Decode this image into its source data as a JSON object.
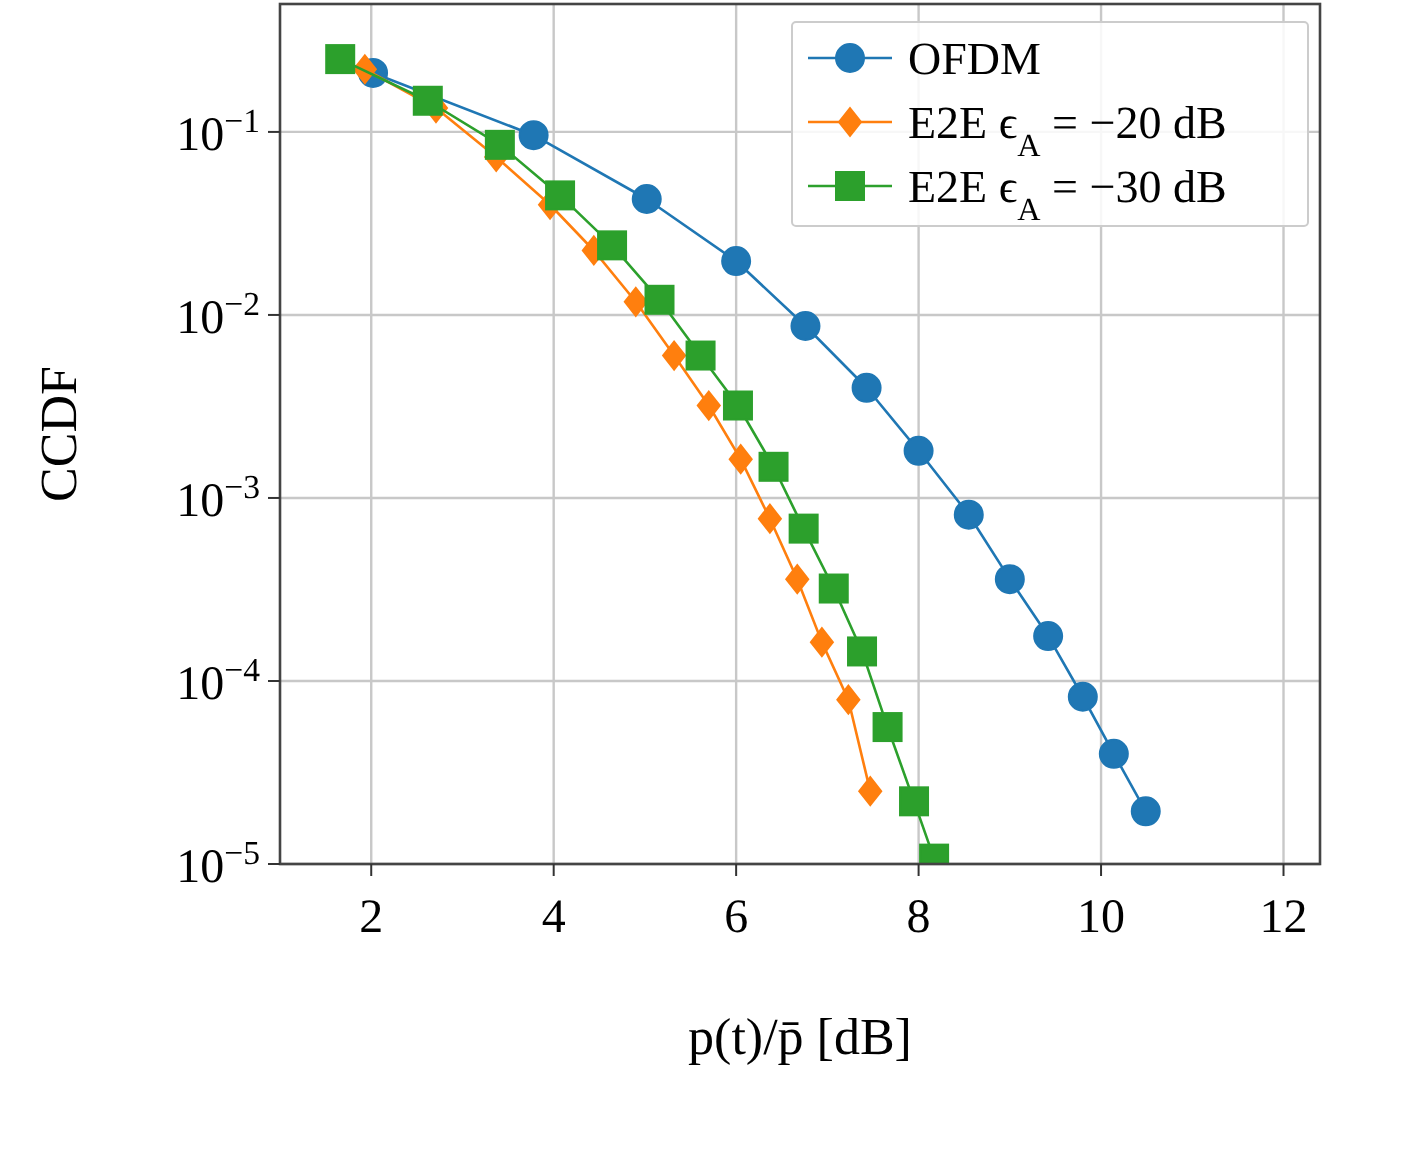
{
  "chart_data": {
    "type": "line",
    "xlabel": "p(t)/p̄ [dB]",
    "ylabel": "CCDF",
    "log": "y",
    "grid": true,
    "legend": "top right",
    "line_style": "solid",
    "xlim": [
      1,
      12.4
    ],
    "xticks": [
      2,
      4,
      6,
      8,
      10,
      12
    ],
    "ylim": [
      1e-05,
      0.5
    ],
    "yticks": [
      {
        "value": 0.1,
        "label": "10$^{−1}$"
      },
      {
        "value": 0.01,
        "label": "10$^{−2}$"
      },
      {
        "value": 0.001,
        "label": "10$^{−3}$"
      },
      {
        "value": 0.0001,
        "label": "10$^{−4}$"
      },
      {
        "value": 1e-05,
        "label": "10$^{−5}$"
      }
    ],
    "series": [
      {
        "name": "OFDM",
        "color": "#1f77b4",
        "marker": "circle",
        "x": [
          2.02,
          3.78,
          5.02,
          6.0,
          6.76,
          7.43,
          8.0,
          8.55,
          9.0,
          9.42,
          9.8,
          10.14,
          10.49
        ],
        "values": [
          0.21,
          0.096,
          0.043,
          0.0197,
          0.0087,
          0.004,
          0.00181,
          0.00081,
          0.00036,
          0.000176,
          8.2e-05,
          4e-05,
          1.94e-05
        ]
      },
      {
        "name": "E2E ϵ$_{A}$ = −20 dB",
        "color": "#ff7f0e",
        "marker": "diamond",
        "x": [
          1.93,
          2.71,
          3.37,
          3.96,
          4.44,
          4.9,
          5.32,
          5.7,
          6.05,
          6.37,
          6.67,
          6.94,
          7.23,
          7.47
        ],
        "values": [
          0.22,
          0.135,
          0.073,
          0.04,
          0.0225,
          0.0118,
          0.006,
          0.0032,
          0.00163,
          0.00077,
          0.00036,
          0.000163,
          7.9e-05,
          2.5e-05
        ]
      },
      {
        "name": "E2E ϵ$_{A}$ = −30 dB",
        "color": "#2ca02c",
        "marker": "square",
        "x": [
          1.66,
          2.62,
          3.41,
          4.07,
          4.64,
          5.16,
          5.61,
          6.02,
          6.41,
          6.74,
          7.07,
          7.38,
          7.66,
          7.95,
          8.17
        ],
        "values": [
          0.25,
          0.148,
          0.085,
          0.045,
          0.024,
          0.0121,
          0.006,
          0.0032,
          0.00148,
          0.00068,
          0.00032,
          0.000145,
          5.6e-05,
          2.2e-05,
          1.07e-05
        ]
      }
    ]
  }
}
